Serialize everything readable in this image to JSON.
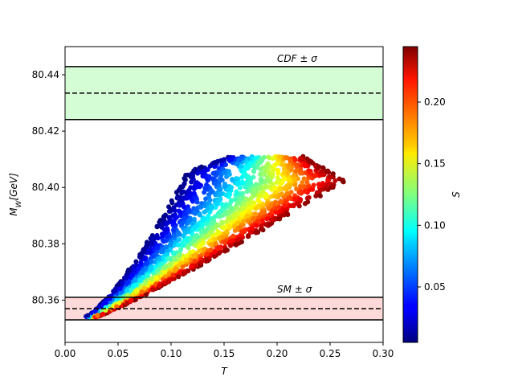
{
  "chart_data": {
    "type": "scatter",
    "title": "",
    "xlabel": "T",
    "ylabel": "M_W[GeV]",
    "colorbar_label": "S",
    "xlim": [
      0.0,
      0.3
    ],
    "ylim": [
      80.345,
      80.45
    ],
    "color_range": [
      0.005,
      0.245
    ],
    "colormap": "jet",
    "x_ticks": [
      "0.00",
      "0.05",
      "0.10",
      "0.15",
      "0.20",
      "0.25",
      "0.30"
    ],
    "x_tick_values": [
      0.0,
      0.05,
      0.1,
      0.15,
      0.2,
      0.25,
      0.3
    ],
    "y_ticks": [
      "80.36",
      "80.38",
      "80.40",
      "80.42",
      "80.44"
    ],
    "y_tick_values": [
      80.36,
      80.38,
      80.4,
      80.42,
      80.44
    ],
    "colorbar_ticks": [
      "0.05",
      "0.10",
      "0.15",
      "0.20"
    ],
    "colorbar_tick_values": [
      0.05,
      0.1,
      0.15,
      0.2
    ],
    "bands": [
      {
        "name": "CDF",
        "label": "CDF ± σ",
        "center": 80.4335,
        "low": 80.4241,
        "high": 80.4429,
        "fill": "#d5fdd5"
      },
      {
        "name": "SM",
        "label": "SM ± σ",
        "center": 80.357,
        "low": 80.353,
        "high": 80.361,
        "fill": "#fdd9d9"
      }
    ],
    "point_region": {
      "description_points": "parametric ellipse-like cloud",
      "t_range": [
        0.018,
        0.265
      ],
      "mw_range": [
        80.354,
        80.411
      ]
    },
    "grid": false,
    "legend": "none"
  }
}
